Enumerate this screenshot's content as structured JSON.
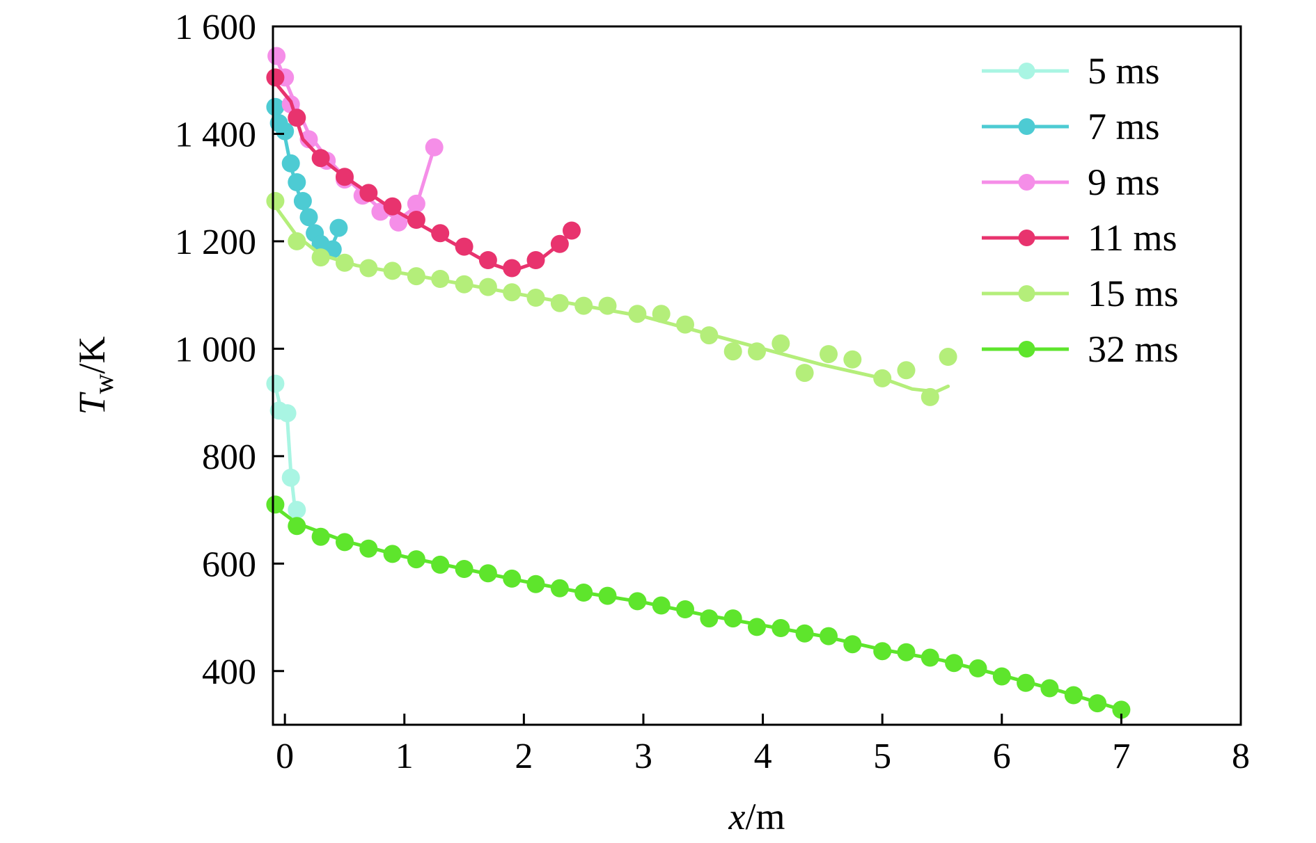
{
  "chart_data": {
    "type": "scatter",
    "xlabel": "x/m",
    "ylabel": "Tw/K",
    "xlabel_parts": {
      "var": "x",
      "unit": "/m"
    },
    "ylabel_parts": {
      "var": "T",
      "sub": "w",
      "unit": "/K"
    },
    "xlim": [
      -0.1,
      8
    ],
    "ylim": [
      300,
      1600
    ],
    "x_ticks": [
      0,
      1,
      2,
      3,
      4,
      5,
      6,
      7,
      8
    ],
    "x_tick_labels": [
      "0",
      "1",
      "2",
      "3",
      "4",
      "5",
      "6",
      "7",
      "8"
    ],
    "y_ticks": [
      400,
      600,
      800,
      1000,
      1200,
      1400,
      1600
    ],
    "y_tick_labels": [
      "400",
      "600",
      "800",
      "1 000",
      "1 200",
      "1 400",
      "1 600"
    ],
    "grid": false,
    "legend_position": "top-right",
    "series": [
      {
        "name": "5 ms",
        "color": "#a9f5e3",
        "points": [
          [
            -0.08,
            935
          ],
          [
            -0.05,
            885
          ],
          [
            0.02,
            880
          ],
          [
            0.05,
            760
          ],
          [
            0.1,
            700
          ]
        ],
        "line": [
          [
            -0.08,
            930
          ],
          [
            -0.03,
            885
          ],
          [
            0.02,
            870
          ],
          [
            0.05,
            770
          ],
          [
            0.08,
            710
          ],
          [
            0.12,
            700
          ]
        ]
      },
      {
        "name": "7 ms",
        "color": "#4dcbd3",
        "points": [
          [
            -0.08,
            1450
          ],
          [
            -0.05,
            1420
          ],
          [
            0.0,
            1405
          ],
          [
            0.05,
            1345
          ],
          [
            0.1,
            1310
          ],
          [
            0.15,
            1275
          ],
          [
            0.2,
            1245
          ],
          [
            0.25,
            1215
          ],
          [
            0.3,
            1195
          ],
          [
            0.4,
            1185
          ],
          [
            0.45,
            1225
          ]
        ],
        "line": [
          [
            -0.08,
            1440
          ],
          [
            -0.04,
            1415
          ],
          [
            0.0,
            1395
          ],
          [
            0.05,
            1340
          ],
          [
            0.1,
            1300
          ],
          [
            0.15,
            1265
          ],
          [
            0.2,
            1235
          ],
          [
            0.25,
            1210
          ],
          [
            0.3,
            1195
          ],
          [
            0.38,
            1185
          ],
          [
            0.45,
            1220
          ]
        ]
      },
      {
        "name": "9 ms",
        "color": "#f58ee8",
        "points": [
          [
            -0.07,
            1545
          ],
          [
            0.0,
            1505
          ],
          [
            0.05,
            1455
          ],
          [
            0.2,
            1390
          ],
          [
            0.35,
            1350
          ],
          [
            0.5,
            1315
          ],
          [
            0.65,
            1285
          ],
          [
            0.8,
            1255
          ],
          [
            0.95,
            1235
          ],
          [
            1.1,
            1270
          ],
          [
            1.25,
            1375
          ]
        ],
        "line": [
          [
            -0.07,
            1540
          ],
          [
            0.05,
            1475
          ],
          [
            0.2,
            1400
          ],
          [
            0.35,
            1355
          ],
          [
            0.5,
            1320
          ],
          [
            0.65,
            1290
          ],
          [
            0.8,
            1260
          ],
          [
            0.95,
            1240
          ],
          [
            1.1,
            1265
          ],
          [
            1.25,
            1375
          ]
        ]
      },
      {
        "name": "11 ms",
        "color": "#e8336e",
        "points": [
          [
            -0.08,
            1505
          ],
          [
            0.1,
            1430
          ],
          [
            0.3,
            1355
          ],
          [
            0.5,
            1320
          ],
          [
            0.7,
            1290
          ],
          [
            0.9,
            1265
          ],
          [
            1.1,
            1240
          ],
          [
            1.3,
            1215
          ],
          [
            1.5,
            1190
          ],
          [
            1.7,
            1165
          ],
          [
            1.9,
            1150
          ],
          [
            2.1,
            1165
          ],
          [
            2.3,
            1195
          ],
          [
            2.4,
            1220
          ]
        ],
        "line": [
          [
            -0.08,
            1495
          ],
          [
            0.05,
            1460
          ],
          [
            0.15,
            1390
          ],
          [
            0.3,
            1355
          ],
          [
            0.5,
            1320
          ],
          [
            0.7,
            1290
          ],
          [
            0.9,
            1260
          ],
          [
            1.1,
            1235
          ],
          [
            1.3,
            1210
          ],
          [
            1.5,
            1185
          ],
          [
            1.7,
            1160
          ],
          [
            1.9,
            1145
          ],
          [
            2.1,
            1160
          ],
          [
            2.3,
            1195
          ],
          [
            2.4,
            1220
          ]
        ]
      },
      {
        "name": "15 ms",
        "color": "#b4ee7a",
        "points": [
          [
            -0.08,
            1275
          ],
          [
            0.1,
            1200
          ],
          [
            0.3,
            1170
          ],
          [
            0.5,
            1160
          ],
          [
            0.7,
            1150
          ],
          [
            0.9,
            1145
          ],
          [
            1.1,
            1135
          ],
          [
            1.3,
            1130
          ],
          [
            1.5,
            1120
          ],
          [
            1.7,
            1115
          ],
          [
            1.9,
            1105
          ],
          [
            2.1,
            1095
          ],
          [
            2.3,
            1085
          ],
          [
            2.5,
            1080
          ],
          [
            2.7,
            1080
          ],
          [
            2.95,
            1065
          ],
          [
            3.15,
            1065
          ],
          [
            3.35,
            1045
          ],
          [
            3.55,
            1025
          ],
          [
            3.75,
            995
          ],
          [
            3.95,
            995
          ],
          [
            4.15,
            1010
          ],
          [
            4.35,
            955
          ],
          [
            4.55,
            990
          ],
          [
            4.75,
            980
          ],
          [
            5.0,
            945
          ],
          [
            5.2,
            960
          ],
          [
            5.4,
            910
          ],
          [
            5.55,
            985
          ]
        ],
        "line": [
          [
            -0.08,
            1265
          ],
          [
            0.1,
            1210
          ],
          [
            0.3,
            1175
          ],
          [
            0.6,
            1155
          ],
          [
            1.0,
            1140
          ],
          [
            1.5,
            1120
          ],
          [
            2.0,
            1100
          ],
          [
            2.5,
            1080
          ],
          [
            3.0,
            1060
          ],
          [
            3.5,
            1030
          ],
          [
            4.0,
            1000
          ],
          [
            4.5,
            970
          ],
          [
            5.0,
            945
          ],
          [
            5.25,
            925
          ],
          [
            5.45,
            920
          ],
          [
            5.55,
            930
          ]
        ]
      },
      {
        "name": "32 ms",
        "color": "#5ee52c",
        "points": [
          [
            -0.08,
            710
          ],
          [
            0.1,
            670
          ],
          [
            0.3,
            650
          ],
          [
            0.5,
            640
          ],
          [
            0.7,
            628
          ],
          [
            0.9,
            618
          ],
          [
            1.1,
            608
          ],
          [
            1.3,
            598
          ],
          [
            1.5,
            590
          ],
          [
            1.7,
            582
          ],
          [
            1.9,
            572
          ],
          [
            2.1,
            562
          ],
          [
            2.3,
            554
          ],
          [
            2.5,
            546
          ],
          [
            2.7,
            540
          ],
          [
            2.95,
            530
          ],
          [
            3.15,
            522
          ],
          [
            3.35,
            515
          ],
          [
            3.55,
            498
          ],
          [
            3.75,
            498
          ],
          [
            3.95,
            482
          ],
          [
            4.15,
            480
          ],
          [
            4.35,
            470
          ],
          [
            4.55,
            465
          ],
          [
            4.75,
            450
          ],
          [
            5.0,
            437
          ],
          [
            5.2,
            435
          ],
          [
            5.4,
            425
          ],
          [
            5.6,
            415
          ],
          [
            5.8,
            405
          ],
          [
            6.0,
            390
          ],
          [
            6.2,
            378
          ],
          [
            6.4,
            368
          ],
          [
            6.6,
            355
          ],
          [
            6.8,
            340
          ],
          [
            7.0,
            328
          ]
        ],
        "line": [
          [
            -0.08,
            705
          ],
          [
            0.1,
            675
          ],
          [
            0.5,
            642
          ],
          [
            1.0,
            613
          ],
          [
            1.5,
            590
          ],
          [
            2.0,
            567
          ],
          [
            2.5,
            546
          ],
          [
            3.0,
            528
          ],
          [
            3.5,
            505
          ],
          [
            4.0,
            485
          ],
          [
            4.5,
            465
          ],
          [
            5.0,
            440
          ],
          [
            5.5,
            420
          ],
          [
            6.0,
            392
          ],
          [
            6.5,
            362
          ],
          [
            7.0,
            328
          ]
        ]
      }
    ]
  }
}
